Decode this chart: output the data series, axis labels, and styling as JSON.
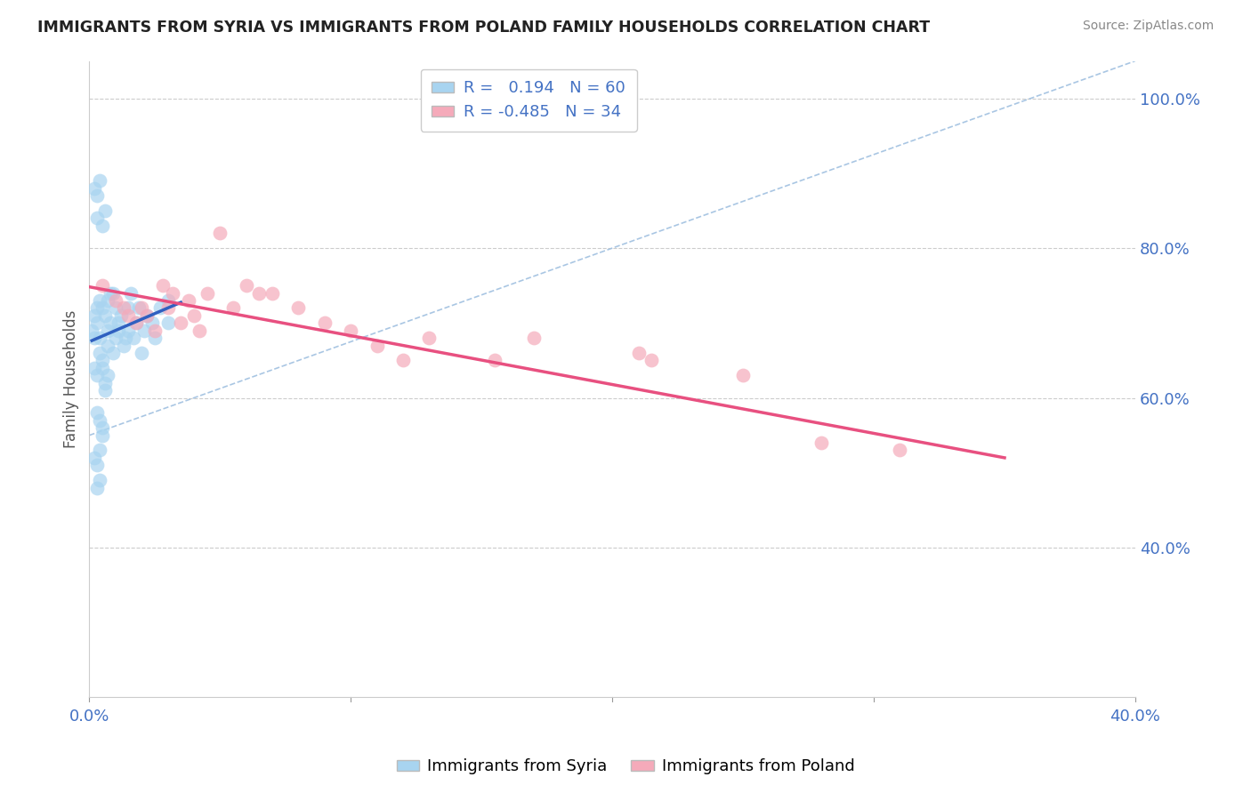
{
  "title": "IMMIGRANTS FROM SYRIA VS IMMIGRANTS FROM POLAND FAMILY HOUSEHOLDS CORRELATION CHART",
  "source": "Source: ZipAtlas.com",
  "ylabel": "Family Households",
  "y_ticks": [
    0.4,
    0.6,
    0.8,
    1.0
  ],
  "y_tick_labels": [
    "40.0%",
    "60.0%",
    "80.0%",
    "100.0%"
  ],
  "x_ticks": [
    0.0,
    0.4
  ],
  "x_tick_labels": [
    "0.0%",
    "40.0%"
  ],
  "x_range": [
    0.0,
    0.4
  ],
  "y_range": [
    0.2,
    1.05
  ],
  "r_syria": 0.194,
  "n_syria": 60,
  "r_poland": -0.485,
  "n_poland": 34,
  "legend_label_syria": "Immigrants from Syria",
  "legend_label_poland": "Immigrants from Poland",
  "color_syria": "#A8D4F0",
  "color_poland": "#F5AABA",
  "color_syria_line": "#3060C0",
  "color_poland_line": "#E85080",
  "color_diag_line": "#A0C0E0",
  "background_color": "#FFFFFF",
  "syria_x": [
    0.001,
    0.002,
    0.002,
    0.002,
    0.003,
    0.003,
    0.003,
    0.003,
    0.004,
    0.004,
    0.004,
    0.005,
    0.005,
    0.005,
    0.006,
    0.006,
    0.007,
    0.007,
    0.007,
    0.008,
    0.008,
    0.009,
    0.009,
    0.01,
    0.01,
    0.011,
    0.011,
    0.012,
    0.013,
    0.014,
    0.015,
    0.015,
    0.016,
    0.017,
    0.018,
    0.019,
    0.02,
    0.021,
    0.022,
    0.024,
    0.025,
    0.027,
    0.03,
    0.002,
    0.003,
    0.004,
    0.005,
    0.006,
    0.006,
    0.007,
    0.002,
    0.003,
    0.004,
    0.005,
    0.003,
    0.004,
    0.005,
    0.03,
    0.003,
    0.004
  ],
  "syria_y": [
    0.69,
    0.71,
    0.68,
    0.88,
    0.7,
    0.84,
    0.87,
    0.72,
    0.68,
    0.73,
    0.89,
    0.65,
    0.72,
    0.83,
    0.71,
    0.85,
    0.69,
    0.73,
    0.67,
    0.7,
    0.74,
    0.66,
    0.74,
    0.68,
    0.72,
    0.7,
    0.69,
    0.71,
    0.67,
    0.68,
    0.72,
    0.69,
    0.74,
    0.68,
    0.7,
    0.72,
    0.66,
    0.69,
    0.71,
    0.7,
    0.68,
    0.72,
    0.7,
    0.64,
    0.63,
    0.66,
    0.64,
    0.62,
    0.61,
    0.63,
    0.52,
    0.51,
    0.53,
    0.55,
    0.58,
    0.57,
    0.56,
    0.73,
    0.48,
    0.49
  ],
  "poland_x": [
    0.005,
    0.01,
    0.013,
    0.015,
    0.018,
    0.02,
    0.022,
    0.025,
    0.028,
    0.03,
    0.032,
    0.035,
    0.038,
    0.04,
    0.042,
    0.045,
    0.05,
    0.055,
    0.06,
    0.065,
    0.07,
    0.08,
    0.09,
    0.1,
    0.11,
    0.12,
    0.13,
    0.155,
    0.17,
    0.21,
    0.215,
    0.25,
    0.28,
    0.31
  ],
  "poland_y": [
    0.75,
    0.73,
    0.72,
    0.71,
    0.7,
    0.72,
    0.71,
    0.69,
    0.75,
    0.72,
    0.74,
    0.7,
    0.73,
    0.71,
    0.69,
    0.74,
    0.82,
    0.72,
    0.75,
    0.74,
    0.74,
    0.72,
    0.7,
    0.69,
    0.67,
    0.65,
    0.68,
    0.65,
    0.68,
    0.66,
    0.65,
    0.63,
    0.54,
    0.53
  ]
}
